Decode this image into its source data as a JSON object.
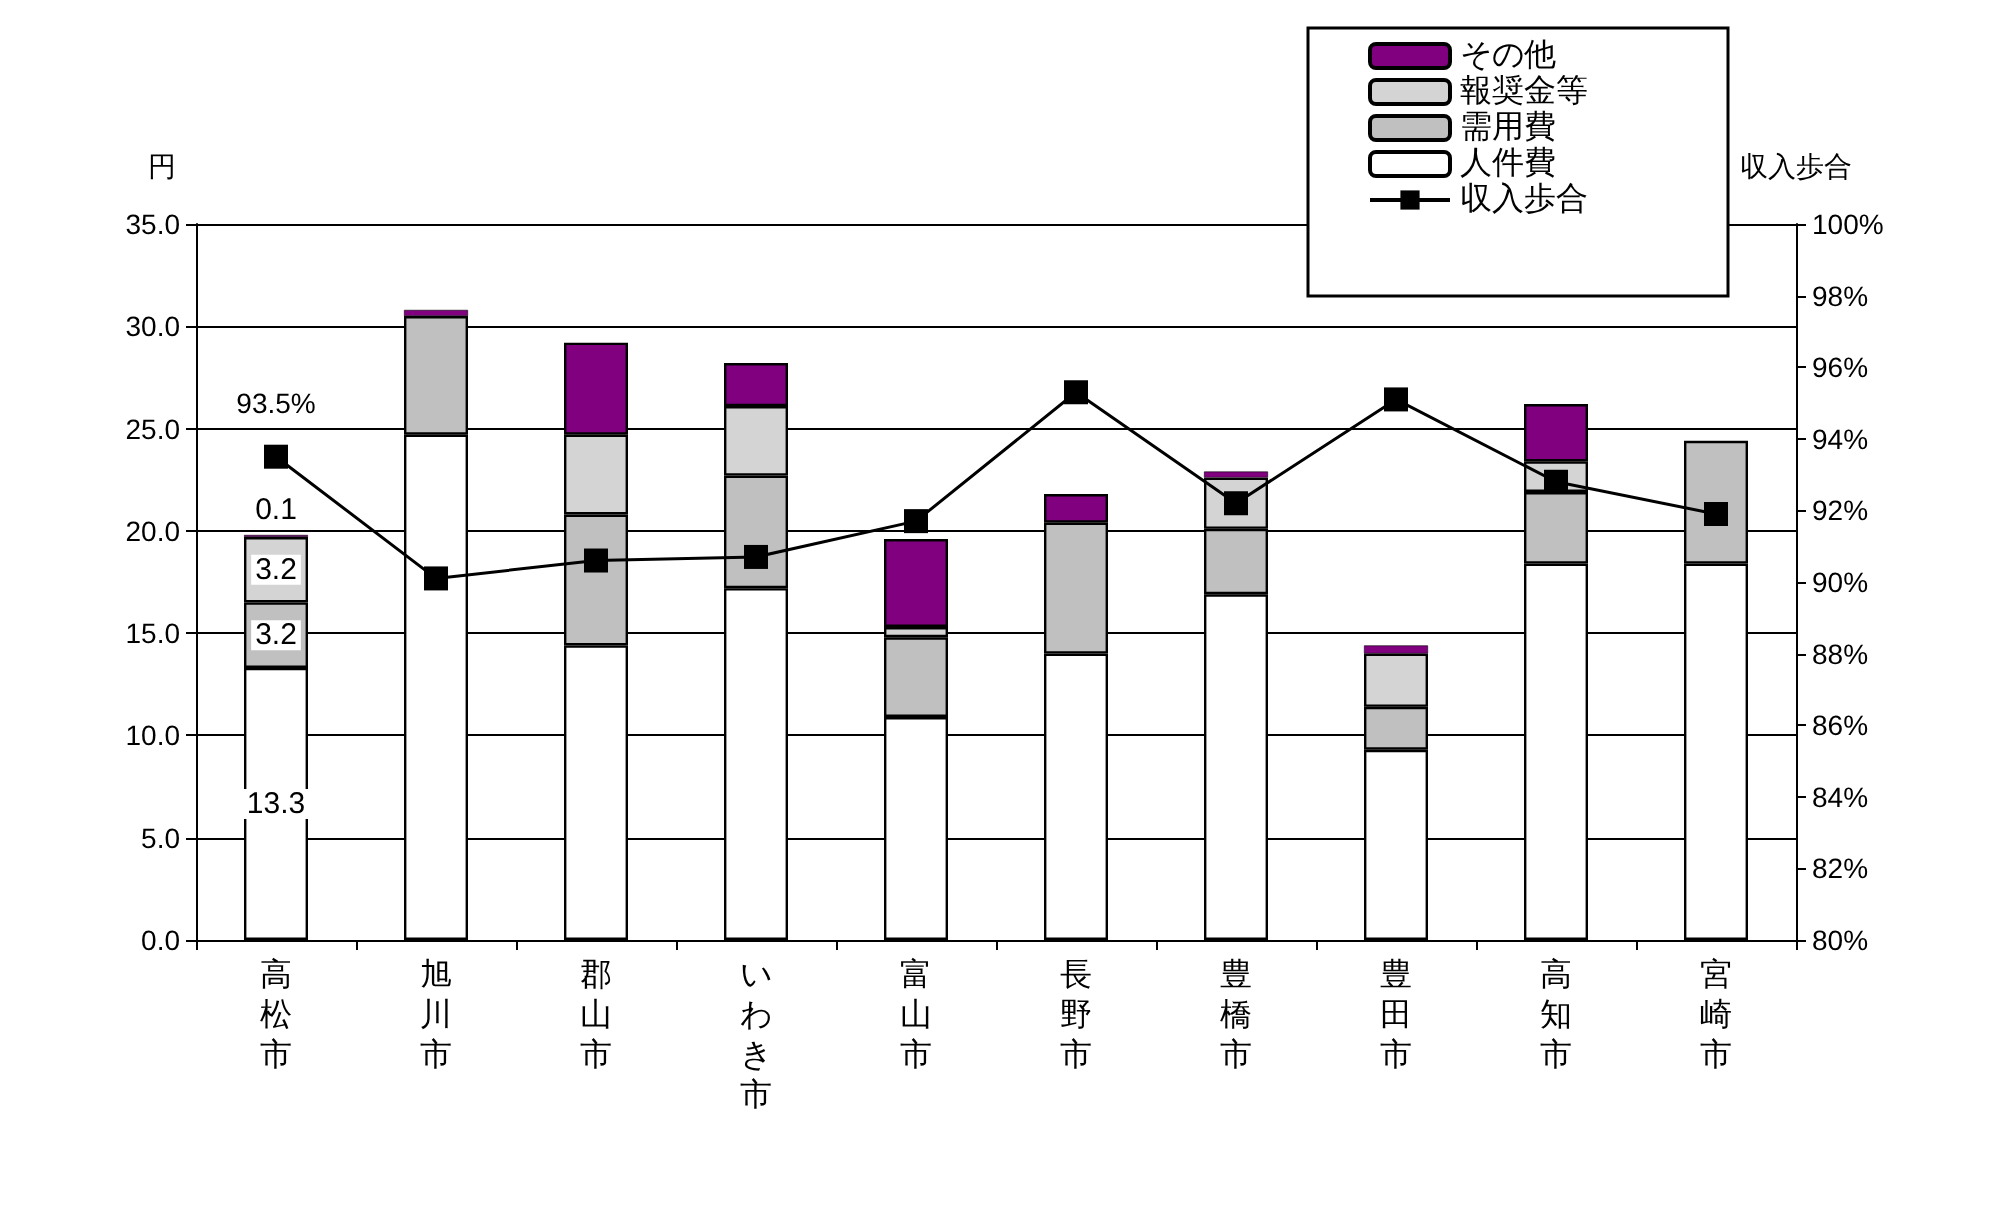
{
  "chart_data": {
    "type": "bar",
    "stacked": true,
    "ylabel": "円",
    "y2label": "収入歩合",
    "categories": [
      "高松市",
      "旭川市",
      "郡山市",
      "いわき市",
      "富山市",
      "長野市",
      "豊橋市",
      "豊田市",
      "高知市",
      "宮崎市"
    ],
    "series": [
      {
        "name": "人件費",
        "color": "#ffffff",
        "values": [
          13.3,
          24.7,
          14.4,
          17.2,
          10.9,
          14.0,
          16.9,
          9.3,
          18.4,
          18.4
        ],
        "value_labels": [
          "13.3",
          null,
          null,
          null,
          null,
          null,
          null,
          null,
          null,
          null
        ]
      },
      {
        "name": "需用費",
        "color": "#c0c0c0",
        "values": [
          3.2,
          5.8,
          6.4,
          5.5,
          3.9,
          6.4,
          3.2,
          2.1,
          3.5,
          6.0
        ],
        "value_labels": [
          "3.2",
          null,
          null,
          null,
          null,
          null,
          null,
          null,
          null,
          null
        ]
      },
      {
        "name": "報奨金等",
        "color": "#d4d4d4",
        "values": [
          3.2,
          0,
          3.9,
          3.4,
          0.5,
          0,
          2.5,
          2.6,
          1.5,
          0
        ],
        "value_labels": [
          "3.2",
          null,
          null,
          null,
          null,
          null,
          null,
          null,
          null,
          null
        ]
      },
      {
        "name": "その他",
        "color": "#800080",
        "values": [
          0.1,
          0.3,
          4.5,
          2.1,
          4.3,
          1.4,
          0.3,
          0.4,
          2.8,
          0
        ],
        "value_labels": [
          "0.1",
          null,
          null,
          null,
          null,
          null,
          null,
          null,
          null,
          null
        ]
      },
      {
        "name": "収入歩合",
        "type": "line",
        "axis": "y2",
        "color": "#000000",
        "marker": "square",
        "values": [
          93.5,
          90.1,
          90.6,
          90.7,
          91.7,
          95.3,
          92.2,
          95.1,
          92.8,
          91.9
        ],
        "value_labels": [
          "93.5%",
          null,
          null,
          null,
          null,
          null,
          null,
          null,
          null,
          null
        ]
      }
    ],
    "ylim": [
      0,
      35
    ],
    "yticks": [
      {
        "value": 0,
        "label": "0.0"
      },
      {
        "value": 5,
        "label": "5.0"
      },
      {
        "value": 10,
        "label": "10.0"
      },
      {
        "value": 15,
        "label": "15.0"
      },
      {
        "value": 20,
        "label": "20.0"
      },
      {
        "value": 25,
        "label": "25.0"
      },
      {
        "value": 30,
        "label": "30.0"
      },
      {
        "value": 35,
        "label": "35.0"
      }
    ],
    "y2lim": [
      80,
      100
    ],
    "y2ticks": [
      {
        "value": 80,
        "label": "80%"
      },
      {
        "value": 82,
        "label": "82%"
      },
      {
        "value": 84,
        "label": "84%"
      },
      {
        "value": 86,
        "label": "86%"
      },
      {
        "value": 88,
        "label": "88%"
      },
      {
        "value": 90,
        "label": "90%"
      },
      {
        "value": 92,
        "label": "92%"
      },
      {
        "value": 94,
        "label": "94%"
      },
      {
        "value": 96,
        "label": "96%"
      },
      {
        "value": 98,
        "label": "98%"
      },
      {
        "value": 100,
        "label": "100%"
      }
    ],
    "grid": "y",
    "legend": "top right"
  }
}
